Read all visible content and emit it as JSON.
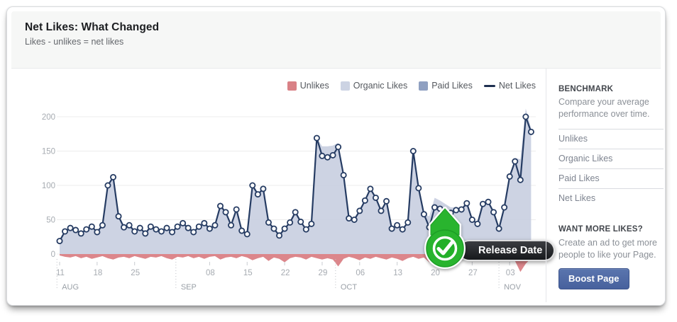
{
  "header": {
    "title": "Net Likes: What Changed",
    "subtitle": "Likes - unlikes = net likes"
  },
  "legend": [
    {
      "label": "Unlikes",
      "color": "#d98186",
      "type": "box"
    },
    {
      "label": "Organic Likes",
      "color": "#ccd3e3",
      "type": "box"
    },
    {
      "label": "Paid Likes",
      "color": "#8fa0c1",
      "type": "box"
    },
    {
      "label": "Net Likes",
      "color": "#1e2f50",
      "type": "line"
    }
  ],
  "release_marker": {
    "label": "Release Date",
    "day_index": 72,
    "check_color": "#29b42e"
  },
  "sidebar": {
    "benchmark_title": "BENCHMARK",
    "benchmark_desc": "Compare your average performance over time.",
    "items": [
      "Unlikes",
      "Organic Likes",
      "Paid Likes",
      "Net Likes"
    ],
    "promo_title": "WANT MORE LIKES?",
    "promo_desc": "Create an ad to get more people to like your Page.",
    "boost_button": "Boost Page"
  },
  "chart_data": {
    "type": "area",
    "title": "Net Likes: What Changed",
    "xlabel": "",
    "ylabel": "",
    "date_range": "Aug 11 - Nov 07",
    "y_ticks": [
      0,
      50,
      100,
      150,
      200
    ],
    "ylim": [
      -35,
      220
    ],
    "grid": true,
    "legend_position": "top-right",
    "week_ticks": [
      {
        "day": 0,
        "label": "11"
      },
      {
        "day": 7,
        "label": "18"
      },
      {
        "day": 14,
        "label": "25"
      },
      {
        "day": 28,
        "label": "08"
      },
      {
        "day": 35,
        "label": "15"
      },
      {
        "day": 42,
        "label": "22"
      },
      {
        "day": 49,
        "label": "29"
      },
      {
        "day": 56,
        "label": "06"
      },
      {
        "day": 63,
        "label": "13"
      },
      {
        "day": 70,
        "label": "20"
      },
      {
        "day": 77,
        "label": "27"
      },
      {
        "day": 84,
        "label": "03"
      }
    ],
    "months": [
      {
        "label": "AUG",
        "line_day": -0.5
      },
      {
        "label": "SEP",
        "line_day": 21.7
      },
      {
        "label": "OCT",
        "line_day": 51.5
      },
      {
        "label": "NOV",
        "line_day": 82
      }
    ],
    "series": [
      {
        "name": "Net Likes",
        "type": "line",
        "color": "#263c63",
        "values": [
          19,
          33,
          38,
          35,
          30,
          36,
          40,
          32,
          42,
          100,
          112,
          55,
          39,
          42,
          33,
          38,
          30,
          40,
          36,
          33,
          38,
          32,
          40,
          45,
          38,
          32,
          40,
          45,
          37,
          42,
          70,
          61,
          42,
          65,
          34,
          29,
          100,
          87,
          95,
          46,
          37,
          27,
          37,
          46,
          61,
          47,
          36,
          44,
          169,
          143,
          141,
          144,
          156,
          115,
          52,
          50,
          63,
          78,
          95,
          82,
          63,
          77,
          37,
          42,
          36,
          46,
          150,
          96,
          58,
          39,
          68,
          66,
          63,
          60,
          64,
          65,
          74,
          50,
          44,
          73,
          76,
          61,
          37,
          68,
          113,
          135,
          108,
          200,
          178
        ]
      },
      {
        "name": "Organic + Paid Likes",
        "type": "area",
        "color": "#c9d0e1",
        "values": [
          19,
          33,
          38,
          35,
          30,
          36,
          40,
          32,
          42,
          100,
          112,
          55,
          39,
          42,
          33,
          38,
          30,
          40,
          36,
          33,
          38,
          32,
          40,
          45,
          38,
          32,
          40,
          45,
          37,
          42,
          76,
          61,
          42,
          69,
          34,
          29,
          100,
          87,
          100,
          46,
          37,
          27,
          37,
          46,
          66,
          47,
          36,
          44,
          169,
          157,
          157,
          158,
          162,
          119,
          52,
          50,
          63,
          78,
          99,
          82,
          63,
          77,
          37,
          42,
          36,
          46,
          150,
          96,
          58,
          55,
          82,
          78,
          73,
          68,
          68,
          67,
          75,
          51,
          44,
          73,
          76,
          61,
          37,
          68,
          113,
          140,
          138,
          212,
          183
        ]
      },
      {
        "name": "Unlikes",
        "type": "area",
        "color": "#da8085",
        "values": [
          -2,
          -4,
          -5,
          -3,
          -6,
          -4,
          -7,
          -5,
          -3,
          -6,
          -8,
          -5,
          -4,
          -6,
          -3,
          -5,
          -7,
          -4,
          -5,
          -3,
          -6,
          -8,
          -4,
          -5,
          -3,
          -6,
          -4,
          -7,
          -4,
          -3,
          -8,
          -5,
          -4,
          -6,
          -3,
          -5,
          -9,
          -6,
          -4,
          -10,
          -5,
          -7,
          -12,
          -6,
          -4,
          -5,
          -8,
          -4,
          -6,
          -8,
          -6,
          -8,
          -18,
          -7,
          -4,
          -6,
          -9,
          -5,
          -7,
          -4,
          -6,
          -8,
          -5,
          -7,
          -10,
          -6,
          -4,
          -7,
          -5,
          -12,
          -8,
          -6,
          -4,
          -6,
          -8,
          -5,
          -7,
          -9,
          -5,
          -4,
          -6,
          -8,
          -5,
          -7,
          -6,
          -10,
          -26,
          -14,
          -6
        ]
      }
    ],
    "colors": {
      "grid": "#ececec",
      "axis_text": "#a6abb1",
      "month_text": "#9aa0a7",
      "marker_fill": "#ffffff"
    }
  }
}
